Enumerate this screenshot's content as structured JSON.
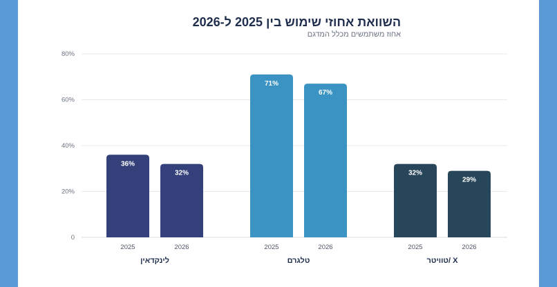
{
  "chart_data": {
    "type": "bar",
    "title": "השוואת אחוזי שימוש בין 2025 ל-2026",
    "subtitle": "אחוז משתמשים מכלל המדגם",
    "ylim": [
      0,
      80
    ],
    "yticks": [
      "0",
      "20%",
      "40%",
      "60%",
      "80%"
    ],
    "ytick_values": [
      0,
      20,
      40,
      60,
      80
    ],
    "grid": true,
    "groups": [
      {
        "name": "לינקדאין",
        "color": "#33407a",
        "bars": [
          {
            "year": "2025",
            "value": 36,
            "label": "36%"
          },
          {
            "year": "2026",
            "value": 32,
            "label": "32%"
          }
        ]
      },
      {
        "name": "טלגרם",
        "color": "#3a93c2",
        "bars": [
          {
            "year": "2025",
            "value": 71,
            "label": "71%"
          },
          {
            "year": "2026",
            "value": 67,
            "label": "67%"
          }
        ]
      },
      {
        "name": "X /טוויטר",
        "color": "#28465a",
        "bars": [
          {
            "year": "2025",
            "value": 32,
            "label": "32%"
          },
          {
            "year": "2026",
            "value": 29,
            "label": "29%"
          }
        ]
      }
    ]
  }
}
